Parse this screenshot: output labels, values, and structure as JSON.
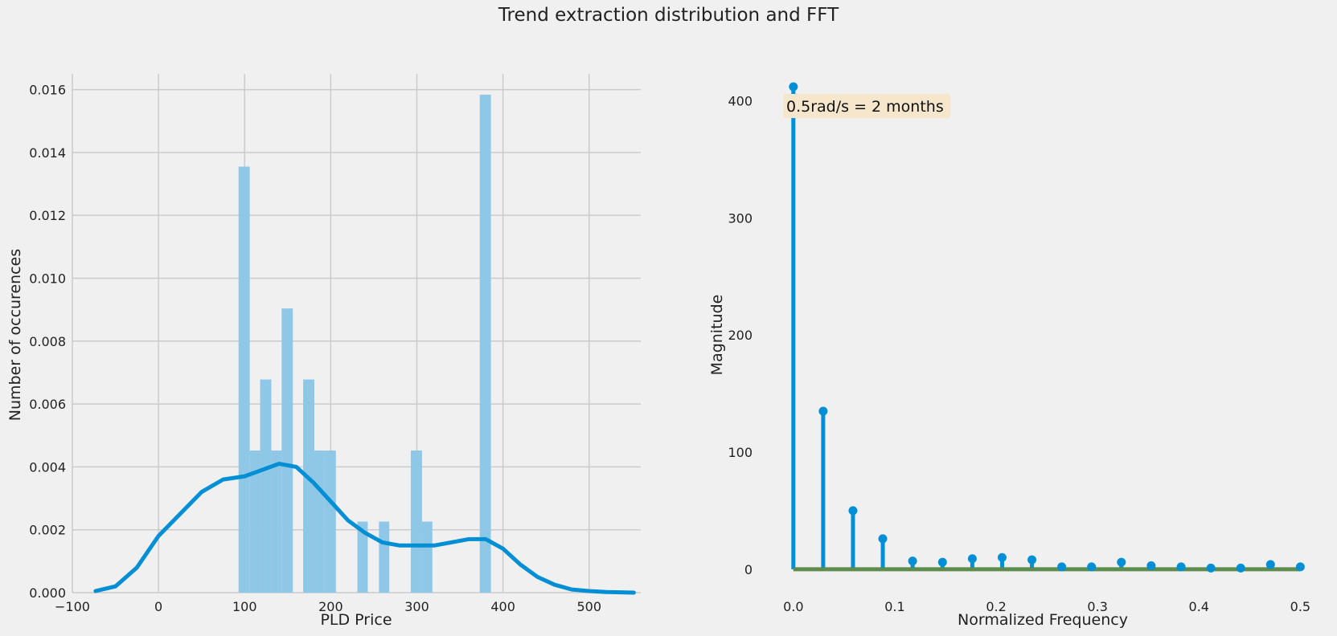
{
  "suptitle": "Trend extraction distribution and FFT",
  "colors": {
    "background": "#f0f0f0",
    "grid": "#cbcbcb",
    "hist_fill": "#8fc8e6",
    "kde_line": "#008fd5",
    "stem": "#008fd5",
    "baseline": "#5e8b4e",
    "annotation_box": "#f5e6cc"
  },
  "chart_data": [
    {
      "type": "histogram",
      "title": "",
      "xlabel": "PLD Price",
      "ylabel": "Number of occurences",
      "xlim": [
        -100,
        560
      ],
      "ylim": [
        0,
        0.0165
      ],
      "xticks": [
        -100,
        0,
        100,
        200,
        300,
        400,
        500
      ],
      "xtick_labels": [
        "−100",
        "0",
        "100",
        "200",
        "300",
        "400",
        "500"
      ],
      "yticks": [
        0,
        0.002,
        0.004,
        0.006,
        0.008,
        0.01,
        0.012,
        0.014,
        0.016
      ],
      "ytick_labels": [
        "0.000",
        "0.002",
        "0.004",
        "0.006",
        "0.008",
        "0.010",
        "0.012",
        "0.014",
        "0.016"
      ],
      "grid": true,
      "bins": [
        {
          "start": 93,
          "end": 106,
          "density": 0.01355
        },
        {
          "start": 106,
          "end": 118,
          "density": 0.00452
        },
        {
          "start": 118,
          "end": 131,
          "density": 0.00678
        },
        {
          "start": 131,
          "end": 143,
          "density": 0.00452
        },
        {
          "start": 143,
          "end": 156,
          "density": 0.00904
        },
        {
          "start": 156,
          "end": 168,
          "density": 0
        },
        {
          "start": 168,
          "end": 181,
          "density": 0.00678
        },
        {
          "start": 181,
          "end": 193,
          "density": 0.00452
        },
        {
          "start": 193,
          "end": 206,
          "density": 0.00452
        },
        {
          "start": 231,
          "end": 243,
          "density": 0.00226
        },
        {
          "start": 256,
          "end": 268,
          "density": 0.00226
        },
        {
          "start": 293,
          "end": 306,
          "density": 0.00452
        },
        {
          "start": 306,
          "end": 318,
          "density": 0.00226
        },
        {
          "start": 373,
          "end": 386,
          "density": 0.01584
        }
      ],
      "kde": {
        "x": [
          -73,
          -50,
          -25,
          0,
          25,
          50,
          75,
          100,
          120,
          140,
          160,
          180,
          200,
          220,
          240,
          260,
          280,
          300,
          320,
          340,
          360,
          370,
          380,
          400,
          420,
          440,
          460,
          480,
          500,
          520,
          552
        ],
        "y": [
          5e-05,
          0.0002,
          0.0008,
          0.0018,
          0.0025,
          0.0032,
          0.0036,
          0.0037,
          0.0039,
          0.0041,
          0.004,
          0.0035,
          0.0029,
          0.0023,
          0.0019,
          0.0016,
          0.0015,
          0.0015,
          0.0015,
          0.0016,
          0.0017,
          0.0017,
          0.0017,
          0.0014,
          0.0009,
          0.0005,
          0.00025,
          0.0001,
          5e-05,
          2e-05,
          0.0
        ]
      }
    },
    {
      "type": "stem",
      "title": "",
      "xlabel": "Normalized Frequency",
      "ylabel": "Magnitude",
      "xlim": [
        -0.0165,
        0.51
      ],
      "ylim": [
        -20,
        423
      ],
      "xticks": [
        0.0,
        0.1,
        0.2,
        0.3,
        0.4,
        0.5
      ],
      "xtick_labels": [
        "0.0",
        "0.1",
        "0.2",
        "0.3",
        "0.4",
        "0.5"
      ],
      "yticks": [
        0,
        100,
        200,
        300,
        400
      ],
      "ytick_labels": [
        "0",
        "100",
        "200",
        "300",
        "400"
      ],
      "grid": false,
      "annotation": "0.5rad/s = 2 months",
      "x": [
        0.0,
        0.0294,
        0.0588,
        0.0882,
        0.1176,
        0.1471,
        0.1765,
        0.2059,
        0.2353,
        0.2647,
        0.2941,
        0.3235,
        0.3529,
        0.3824,
        0.4118,
        0.4412,
        0.4706,
        0.5
      ],
      "y": [
        412,
        135,
        50,
        26,
        7,
        6,
        9,
        10,
        8,
        2,
        2,
        6,
        3,
        2,
        1,
        1,
        4,
        2
      ]
    }
  ]
}
